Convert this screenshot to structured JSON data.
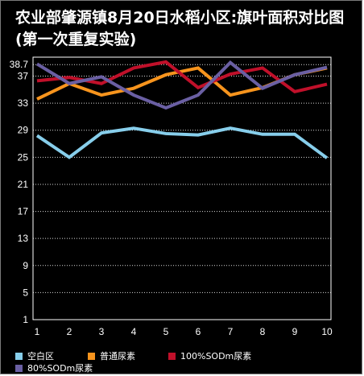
{
  "chart_data": {
    "type": "line",
    "title": "农业部肇源镇8月20日水稻小区:旗叶面积对比图(第一次重复实验)",
    "categories": [
      "1",
      "2",
      "3",
      "4",
      "5",
      "6",
      "7",
      "8",
      "9",
      "10"
    ],
    "y_ticks": [
      "1",
      "5",
      "9",
      "13",
      "17",
      "21",
      "25",
      "29",
      "33",
      "37",
      "38.7"
    ],
    "ylim": [
      1,
      38.7
    ],
    "grid": "horizontal dotted",
    "legend_position": "bottom",
    "xlabel": "",
    "ylabel": "",
    "series": [
      {
        "name": "空白区",
        "color": "#87ceeb",
        "values": [
          28.2,
          25.0,
          28.6,
          29.3,
          28.5,
          28.3,
          29.3,
          28.4,
          28.4,
          24.9
        ]
      },
      {
        "name": "普通尿素",
        "color": "#f7941d",
        "values": [
          33.6,
          35.9,
          34.2,
          35.2,
          37.2,
          38.2,
          34.2,
          35.3,
          37.2,
          38.2
        ]
      },
      {
        "name": "100%SODm尿素",
        "color": "#c0102a",
        "values": [
          36.3,
          36.8,
          35.9,
          38.2,
          39.1,
          35.3,
          37.3,
          38.2,
          34.7,
          35.8
        ]
      },
      {
        "name": "80%SODm尿素",
        "color": "#6a5fa3",
        "values": [
          38.8,
          35.9,
          36.9,
          34.2,
          32.3,
          34.2,
          39.0,
          35.2,
          37.2,
          38.3
        ]
      }
    ]
  }
}
